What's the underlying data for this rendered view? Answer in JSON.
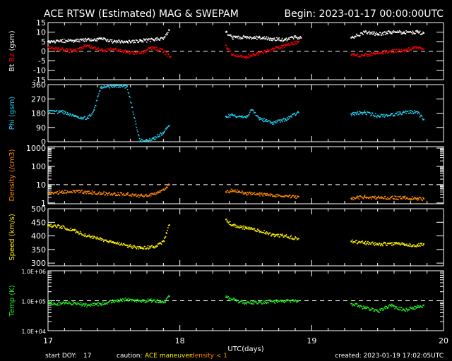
{
  "header": {
    "title": "ACE RTSW (Estimated) MAG & SWEPAM",
    "begin": "Begin: 2023-01-17 00:00:00UTC"
  },
  "footer": {
    "start_doy_label": "start DOY:",
    "start_doy_value": "17",
    "caution_label": "caution:",
    "caution_maneuver": "ACE maneuver",
    "caution_density": "density < 1",
    "created": "created: 2023-01-19 17:02:05UTC"
  },
  "colors": {
    "bt": "#ffffff",
    "bz": "#ff0000",
    "phi": "#22ccee",
    "density": "#ff8800",
    "speed": "#ffee00",
    "temp": "#22ee22",
    "axis": "#ffffff",
    "maneuver": "#ffee00",
    "caution_density": "#ff8800"
  },
  "chart_data": [
    {
      "type": "scatter",
      "panel": "mag",
      "ylabel_parts": [
        "Bt",
        "Bz",
        "(gsm)"
      ],
      "ylim": [
        -15,
        15
      ],
      "yticks": [
        -15,
        -10,
        -5,
        0,
        5,
        10,
        15
      ],
      "yticklabels": [
        "-15",
        "-10",
        "-5",
        "0",
        "5",
        "10",
        "15"
      ],
      "reference_line": 0,
      "series": [
        {
          "name": "Bt",
          "points": [
            [
              17.0,
              5
            ],
            [
              17.1,
              5.5
            ],
            [
              17.2,
              5.5
            ],
            [
              17.3,
              6
            ],
            [
              17.4,
              6.5
            ],
            [
              17.5,
              5
            ],
            [
              17.6,
              5
            ],
            [
              17.7,
              5.5
            ],
            [
              17.8,
              6
            ],
            [
              17.88,
              7
            ],
            [
              17.92,
              11
            ],
            [
              18.35,
              10
            ],
            [
              18.4,
              7
            ],
            [
              18.5,
              7.5
            ],
            [
              18.6,
              7
            ],
            [
              18.7,
              6.5
            ],
            [
              18.8,
              6
            ],
            [
              18.85,
              7.5
            ],
            [
              18.92,
              7
            ],
            [
              19.3,
              7
            ],
            [
              19.4,
              10
            ],
            [
              19.5,
              9
            ],
            [
              19.6,
              10
            ],
            [
              19.7,
              10
            ],
            [
              19.8,
              10
            ],
            [
              19.85,
              9.5
            ]
          ]
        },
        {
          "name": "Bz",
          "points": [
            [
              17.0,
              2
            ],
            [
              17.1,
              1
            ],
            [
              17.2,
              0
            ],
            [
              17.3,
              3
            ],
            [
              17.4,
              0.5
            ],
            [
              17.5,
              1
            ],
            [
              17.6,
              -0.5
            ],
            [
              17.7,
              -1
            ],
            [
              17.8,
              2
            ],
            [
              17.88,
              0
            ],
            [
              17.93,
              -3
            ],
            [
              18.35,
              3
            ],
            [
              18.4,
              -2
            ],
            [
              18.5,
              -3
            ],
            [
              18.6,
              -1
            ],
            [
              18.7,
              1
            ],
            [
              18.8,
              3
            ],
            [
              18.9,
              5
            ],
            [
              19.3,
              -2
            ],
            [
              19.4,
              -2
            ],
            [
              19.5,
              -1
            ],
            [
              19.6,
              0
            ],
            [
              19.7,
              0.5
            ],
            [
              19.8,
              2
            ],
            [
              19.85,
              1
            ]
          ]
        }
      ]
    },
    {
      "type": "scatter",
      "panel": "phi",
      "ylabel": "Phi (gsm)",
      "ylim": [
        0,
        360
      ],
      "yticks": [
        0,
        90,
        180,
        270,
        360
      ],
      "yticklabels": [
        "0",
        "90",
        "180",
        "270",
        "360"
      ],
      "series": [
        {
          "name": "Phi",
          "points": [
            [
              17.0,
              195
            ],
            [
              17.1,
              190
            ],
            [
              17.2,
              160
            ],
            [
              17.3,
              150
            ],
            [
              17.35,
              200
            ],
            [
              17.4,
              340
            ],
            [
              17.5,
              355
            ],
            [
              17.6,
              350
            ],
            [
              17.7,
              5
            ],
            [
              17.8,
              20
            ],
            [
              17.88,
              60
            ],
            [
              17.92,
              100
            ],
            [
              18.35,
              160
            ],
            [
              18.4,
              170
            ],
            [
              18.5,
              155
            ],
            [
              18.55,
              200
            ],
            [
              18.6,
              150
            ],
            [
              18.7,
              120
            ],
            [
              18.8,
              140
            ],
            [
              18.9,
              185
            ],
            [
              19.3,
              175
            ],
            [
              19.4,
              185
            ],
            [
              19.5,
              165
            ],
            [
              19.6,
              170
            ],
            [
              19.7,
              185
            ],
            [
              19.8,
              190
            ],
            [
              19.85,
              140
            ]
          ]
        }
      ]
    },
    {
      "type": "scatter",
      "panel": "density",
      "ylabel": "Density (/cm3)",
      "ylim": [
        0.9,
        1200
      ],
      "ylog": true,
      "yticks": [
        1,
        10,
        100,
        1000
      ],
      "yticklabels": [
        "1",
        "10",
        "100",
        "1000"
      ],
      "reference_line": 10,
      "series": [
        {
          "name": "Density",
          "points": [
            [
              17.0,
              3.5
            ],
            [
              17.1,
              4
            ],
            [
              17.2,
              4.5
            ],
            [
              17.3,
              4
            ],
            [
              17.4,
              3.5
            ],
            [
              17.5,
              3.2
            ],
            [
              17.6,
              3
            ],
            [
              17.7,
              2.5
            ],
            [
              17.8,
              3
            ],
            [
              17.88,
              5
            ],
            [
              17.92,
              10
            ],
            [
              18.35,
              4
            ],
            [
              18.4,
              5
            ],
            [
              18.5,
              3.5
            ],
            [
              18.6,
              3
            ],
            [
              18.7,
              2.8
            ],
            [
              18.8,
              2.5
            ],
            [
              18.9,
              2.2
            ],
            [
              19.3,
              1.8
            ],
            [
              19.4,
              2.2
            ],
            [
              19.5,
              2
            ],
            [
              19.6,
              2
            ],
            [
              19.7,
              1.9
            ],
            [
              19.8,
              1.8
            ],
            [
              19.85,
              1.7
            ]
          ]
        }
      ]
    },
    {
      "type": "scatter",
      "panel": "speed",
      "ylabel": "Speed (km/s)",
      "ylim": [
        290,
        500
      ],
      "yticks": [
        300,
        350,
        400,
        450,
        500
      ],
      "yticklabels": [
        "300",
        "350",
        "400",
        "450",
        "500"
      ],
      "series": [
        {
          "name": "Speed",
          "points": [
            [
              17.0,
              440
            ],
            [
              17.1,
              435
            ],
            [
              17.2,
              420
            ],
            [
              17.3,
              400
            ],
            [
              17.4,
              390
            ],
            [
              17.5,
              375
            ],
            [
              17.6,
              365
            ],
            [
              17.7,
              355
            ],
            [
              17.8,
              360
            ],
            [
              17.88,
              380
            ],
            [
              17.92,
              440
            ],
            [
              18.35,
              460
            ],
            [
              18.4,
              440
            ],
            [
              18.5,
              430
            ],
            [
              18.6,
              420
            ],
            [
              18.7,
              405
            ],
            [
              18.8,
              400
            ],
            [
              18.9,
              390
            ],
            [
              19.3,
              380
            ],
            [
              19.4,
              375
            ],
            [
              19.5,
              370
            ],
            [
              19.6,
              372
            ],
            [
              19.7,
              370
            ],
            [
              19.8,
              365
            ],
            [
              19.85,
              370
            ]
          ]
        }
      ]
    },
    {
      "type": "scatter",
      "panel": "temp",
      "ylabel": "Temp (K)",
      "ylim": [
        10000,
        1000000
      ],
      "ylog": true,
      "yticks": [
        10000,
        100000,
        1000000
      ],
      "yticklabels": [
        "1.0E+04",
        "1.0E+05",
        "1.0E+06"
      ],
      "reference_line": 100000,
      "series": [
        {
          "name": "Temp",
          "points": [
            [
              17.0,
              90000
            ],
            [
              17.1,
              80000
            ],
            [
              17.2,
              85000
            ],
            [
              17.3,
              70000
            ],
            [
              17.4,
              80000
            ],
            [
              17.5,
              100000
            ],
            [
              17.6,
              110000
            ],
            [
              17.7,
              95000
            ],
            [
              17.8,
              105000
            ],
            [
              17.88,
              90000
            ],
            [
              17.92,
              140000
            ],
            [
              18.35,
              130000
            ],
            [
              18.4,
              110000
            ],
            [
              18.5,
              85000
            ],
            [
              18.6,
              90000
            ],
            [
              18.7,
              95000
            ],
            [
              18.8,
              100000
            ],
            [
              18.9,
              100000
            ],
            [
              19.3,
              80000
            ],
            [
              19.4,
              60000
            ],
            [
              19.5,
              45000
            ],
            [
              19.6,
              70000
            ],
            [
              19.7,
              50000
            ],
            [
              19.8,
              60000
            ],
            [
              19.85,
              70000
            ]
          ]
        }
      ]
    },
    {
      "type": "axis",
      "panel": "time",
      "xlabel": "UTC(days)",
      "xlim": [
        17,
        20
      ],
      "xticks": [
        17,
        18,
        19,
        20
      ],
      "xticklabels": [
        "17",
        "18",
        "19",
        "20"
      ]
    }
  ]
}
